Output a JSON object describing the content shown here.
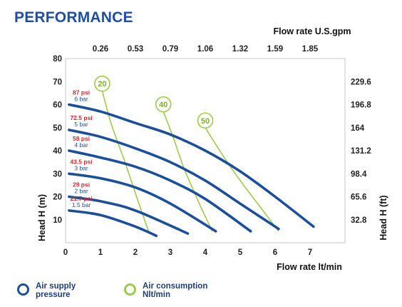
{
  "title": "PERFORMANCE",
  "chart_data": {
    "type": "line",
    "xlabel_bottom": "Flow rate  lt/min",
    "xlabel_top": "Flow rate U.S.gpm",
    "ylabel_left": "Head H (m)",
    "ylabel_right": "Head H (ft)",
    "xlim": [
      0,
      8
    ],
    "ylim": [
      0,
      80
    ],
    "x_ticks": [
      "0",
      "1",
      "2",
      "3",
      "4",
      "5",
      "6",
      "7"
    ],
    "y_ticks": [
      "10",
      "20",
      "30",
      "40",
      "50",
      "60",
      "70",
      "80"
    ],
    "top_ticks": [
      {
        "label": "0.26",
        "at": 1
      },
      {
        "label": "0.53",
        "at": 2
      },
      {
        "label": "0.79",
        "at": 3
      },
      {
        "label": "1.06",
        "at": 4
      },
      {
        "label": "1.32",
        "at": 5
      },
      {
        "label": "1.59",
        "at": 6
      },
      {
        "label": "1.85",
        "at": 7
      }
    ],
    "right_ticks": [
      {
        "label": "229.6",
        "at": 70
      },
      {
        "label": "196.8",
        "at": 60
      },
      {
        "label": "164",
        "at": 50
      },
      {
        "label": "131.2",
        "at": 40
      },
      {
        "label": "98.4",
        "at": 30
      },
      {
        "label": "65.6",
        "at": 20
      },
      {
        "label": "32.8",
        "at": 10
      }
    ],
    "grid": false,
    "series": [
      {
        "name": "87 psi 6 bar",
        "psi": "87 psi",
        "bar": "6 bar",
        "x": [
          0.1,
          1.0,
          2.0,
          3.0,
          4.0,
          5.0,
          6.0,
          7.1
        ],
        "y": [
          60,
          57,
          52,
          47,
          40,
          31,
          20,
          7
        ]
      },
      {
        "name": "72.5 psi 5 bar",
        "psi": "72.5 psi",
        "bar": "5 bar",
        "x": [
          0.1,
          1.0,
          2.0,
          3.0,
          4.0,
          5.0,
          6.1
        ],
        "y": [
          49,
          46,
          41,
          35,
          27,
          17,
          6
        ]
      },
      {
        "name": "58 psi 4 bar",
        "psi": "58 psi",
        "bar": "4 bar",
        "x": [
          0.1,
          1.0,
          2.0,
          3.0,
          4.0,
          5.3
        ],
        "y": [
          40,
          37,
          33,
          27,
          19,
          5
        ]
      },
      {
        "name": "43.5 psi 3 bar",
        "psi": "43.5 psi",
        "bar": "3 bar",
        "x": [
          0.1,
          1.0,
          2.0,
          3.0,
          4.3
        ],
        "y": [
          30,
          28,
          24,
          17,
          5
        ]
      },
      {
        "name": "29 psi 2 bar",
        "psi": "29 psi",
        "bar": "2 bar",
        "x": [
          0.1,
          1.0,
          2.0,
          3.5
        ],
        "y": [
          20,
          18,
          14,
          4
        ]
      },
      {
        "name": "21.7 psi 1.5 bar",
        "psi": "21.7 psi",
        "bar": "1.5 bar",
        "x": [
          0.1,
          1.0,
          2.0,
          2.6
        ],
        "y": [
          14,
          12,
          7,
          3
        ]
      }
    ],
    "consumption": [
      {
        "label": "20",
        "x": [
          1.05,
          1.3,
          1.7,
          2.1,
          2.4
        ],
        "y": [
          66,
          52,
          35,
          17,
          4
        ]
      },
      {
        "label": "40",
        "x": [
          2.8,
          3.1,
          3.4,
          3.8,
          4.2
        ],
        "y": [
          57,
          45,
          32,
          18,
          5
        ]
      },
      {
        "label": "50",
        "x": [
          4.0,
          4.5,
          5.0,
          5.6,
          6.1
        ],
        "y": [
          50,
          38,
          27,
          15,
          5
        ]
      }
    ],
    "colors": {
      "pressure": "#1b4f9c",
      "consumption": "#9ccc4a",
      "psi_text": "#d5282e",
      "bar_text": "#1f4ea3"
    }
  },
  "legend": {
    "pressure": "Air supply\npressure",
    "consumption": "Air consumption\nNlt/min"
  }
}
